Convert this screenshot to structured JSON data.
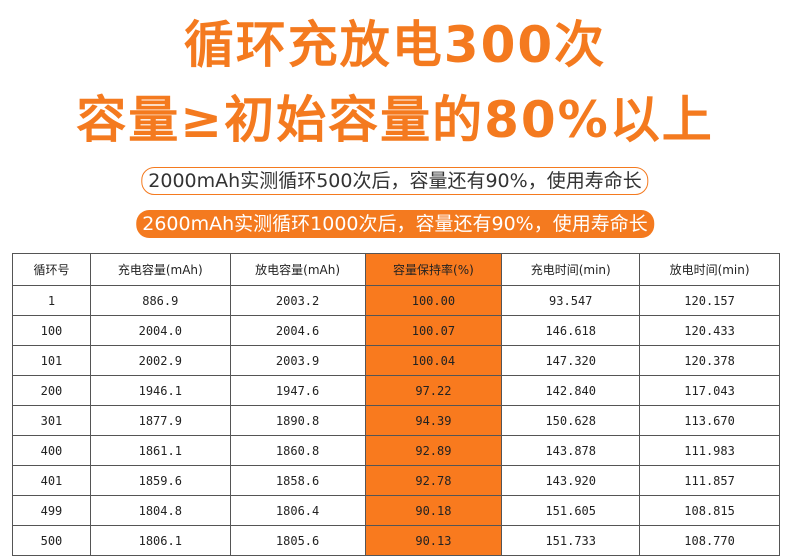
{
  "header": {
    "title_line1": "循环充放电300次",
    "title_line2": "容量≥初始容量的80%以上"
  },
  "notes": [
    "2000mAh实测循环500次后，容量还有90%，使用寿命长",
    "2600mAh实测循环1000次后，容量还有90%，使用寿命长"
  ],
  "table": {
    "columns": [
      "循环号",
      "充电容量(mAh)",
      "放电容量(mAh)",
      "容量保持率(%)",
      "充电时间(min)",
      "放电时间(min)"
    ],
    "rows": [
      [
        "1",
        "886.9",
        "2003.2",
        "100.00",
        "93.547",
        "120.157"
      ],
      [
        "100",
        "2004.0",
        "2004.6",
        "100.07",
        "146.618",
        "120.433"
      ],
      [
        "101",
        "2002.9",
        "2003.9",
        "100.04",
        "147.320",
        "120.378"
      ],
      [
        "200",
        "1946.1",
        "1947.6",
        "97.22",
        "142.840",
        "117.043"
      ],
      [
        "301",
        "1877.9",
        "1890.8",
        "94.39",
        "150.628",
        "113.670"
      ],
      [
        "400",
        "1861.1",
        "1860.8",
        "92.89",
        "143.878",
        "111.983"
      ],
      [
        "401",
        "1859.6",
        "1858.6",
        "92.78",
        "143.920",
        "111.857"
      ],
      [
        "499",
        "1804.8",
        "1806.4",
        "90.18",
        "151.605",
        "108.815"
      ],
      [
        "500",
        "1806.1",
        "1805.6",
        "90.13",
        "151.733",
        "108.770"
      ]
    ]
  }
}
